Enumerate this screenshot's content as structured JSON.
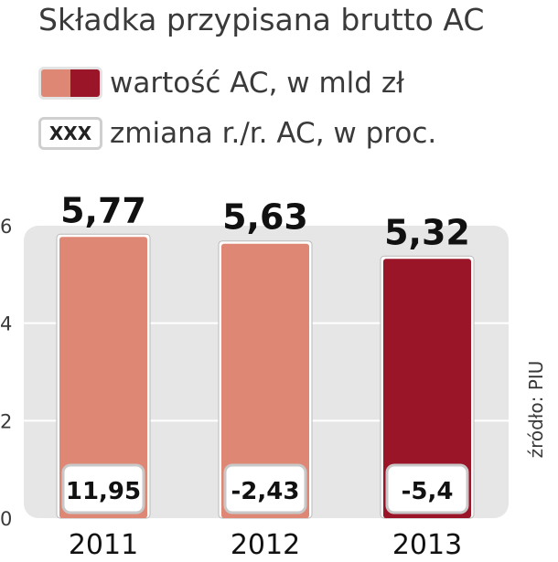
{
  "chart_data": {
    "type": "bar",
    "title": "Składka przypisana brutto AC",
    "categories": [
      "2011",
      "2012",
      "2013"
    ],
    "series": [
      {
        "name": "wartość AC, w mld zł",
        "values": [
          5.77,
          5.63,
          5.32
        ],
        "value_labels": [
          "5,77",
          "5,63",
          "5,32"
        ]
      },
      {
        "name": "zmiana r./r. AC, w proc.",
        "values": [
          11.95,
          -2.43,
          -5.4
        ],
        "value_labels": [
          "11,95",
          "-2,43",
          "-5,4"
        ]
      }
    ],
    "bar_colors": [
      "#de8774",
      "#de8774",
      "#9a1527"
    ],
    "ylim": [
      0,
      6
    ],
    "yticks": [
      "0",
      "2",
      "4",
      "6"
    ],
    "grid": true,
    "source": "źródło: PIU"
  },
  "legend": {
    "value_label": "wartość AC, w mld zł",
    "value_colors": [
      "#de8774",
      "#9a1527"
    ],
    "change_label": "zmiana r./r. AC, w proc.",
    "change_placeholder": "XXX"
  }
}
